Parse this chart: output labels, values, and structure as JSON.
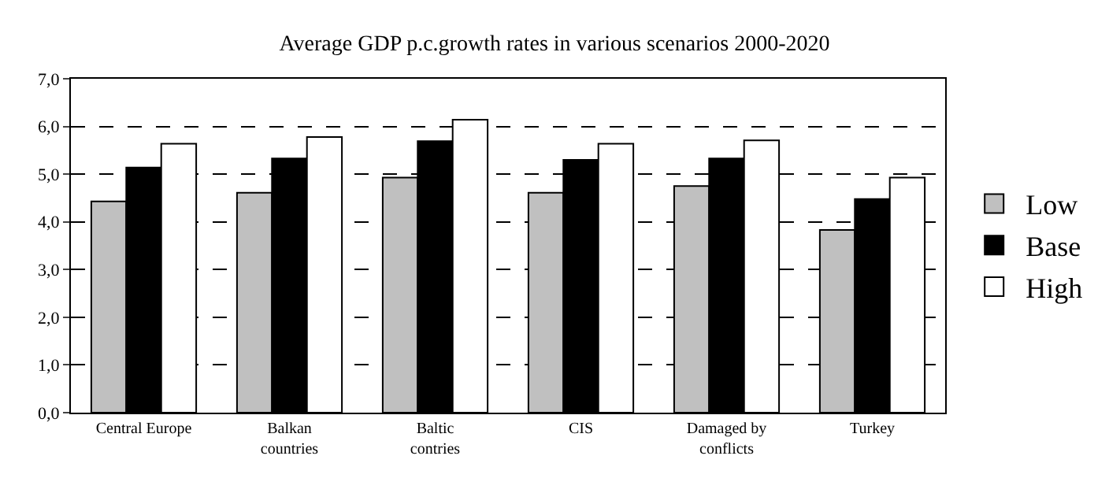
{
  "chart_data": {
    "type": "bar",
    "title": "Average GDP p.c.growth rates in various scenarios 2000-2020",
    "categories": [
      "Central Europe",
      "Balkan countries",
      "Baltic contries",
      "CIS",
      "Damaged by conflicts",
      "Turkey"
    ],
    "series": [
      {
        "name": "Low",
        "color": "#c0c0c0",
        "values": [
          4.43,
          4.61,
          4.93,
          4.61,
          4.75,
          3.83
        ]
      },
      {
        "name": "Base",
        "color": "#000000",
        "values": [
          5.14,
          5.33,
          5.69,
          5.3,
          5.33,
          4.48
        ]
      },
      {
        "name": "High",
        "color": "#ffffff",
        "values": [
          5.64,
          5.78,
          6.14,
          5.64,
          5.71,
          4.93
        ]
      }
    ],
    "ylim": [
      0,
      7
    ],
    "yticks": [
      {
        "value": 0,
        "label": "0,0"
      },
      {
        "value": 1,
        "label": "1,0"
      },
      {
        "value": 2,
        "label": "2,0"
      },
      {
        "value": 3,
        "label": "3,0"
      },
      {
        "value": 4,
        "label": "4,0"
      },
      {
        "value": 5,
        "label": "5,0"
      },
      {
        "value": 6,
        "label": "6,0"
      },
      {
        "value": 7,
        "label": "7,0"
      }
    ],
    "grid": "y",
    "legend": "right"
  }
}
